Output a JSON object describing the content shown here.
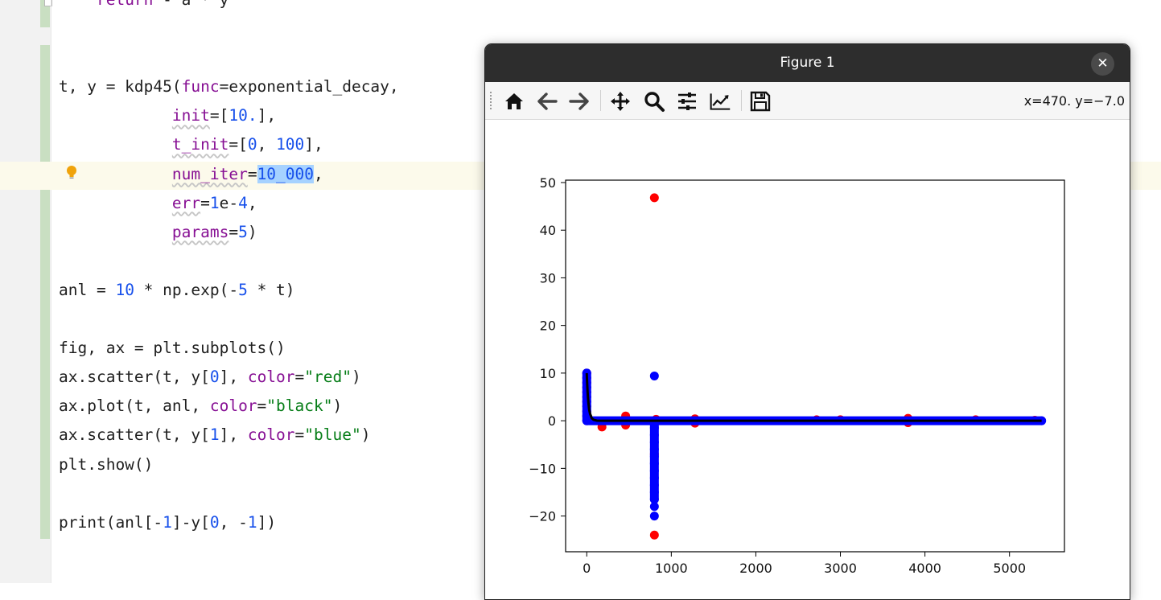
{
  "editor": {
    "lines": [
      {
        "id": "l0",
        "html": "    <span class=\"kw-param\">return</span> - a * y"
      },
      {
        "id": "l1",
        "html": ""
      },
      {
        "id": "l2",
        "html": ""
      },
      {
        "id": "l3",
        "html": "t, y = kdp45(<span class=\"kw-param\">func</span>=exponential_decay,"
      },
      {
        "id": "l4",
        "html": "            <span class=\"kw-param squig\">init</span>=[<span class=\"num\">10.</span>],"
      },
      {
        "id": "l5",
        "html": "            <span class=\"kw-param squig\">t_init</span>=[<span class=\"num\">0</span>, <span class=\"num\">100</span>],"
      },
      {
        "id": "l6",
        "html": "            <span class=\"kw-param squig\">num_iter</span>=<span class=\"num sel\">10_000</span>,"
      },
      {
        "id": "l7",
        "html": "            <span class=\"kw-param squig\">err</span>=<span class=\"num\">1</span>e-<span class=\"num\">4</span>,"
      },
      {
        "id": "l8",
        "html": "            <span class=\"kw-param squig\">params</span>=<span class=\"num\">5</span>)"
      },
      {
        "id": "l9",
        "html": ""
      },
      {
        "id": "l10",
        "html": "anl = <span class=\"num\">10</span> * np.exp(-<span class=\"num\">5</span> * t)"
      },
      {
        "id": "l11",
        "html": ""
      },
      {
        "id": "l12",
        "html": "fig, ax = plt.subplots()"
      },
      {
        "id": "l13",
        "html": "ax.scatter(t, y[<span class=\"num\">0</span>], <span class=\"kw-param\">color</span>=<span class=\"str\">\"red\"</span>)"
      },
      {
        "id": "l14",
        "html": "ax.plot(t, anl, <span class=\"kw-param\">color</span>=<span class=\"str\">\"black\"</span>)"
      },
      {
        "id": "l15",
        "html": "ax.scatter(t, y[<span class=\"num\">1</span>], <span class=\"kw-param\">color</span>=<span class=\"str\">\"blue\"</span>)"
      },
      {
        "id": "l16",
        "html": "plt.show()"
      },
      {
        "id": "l17",
        "html": ""
      },
      {
        "id": "l18",
        "html": "print(anl[-<span class=\"num\">1</span>]-y[<span class=\"num\">0</span>, -<span class=\"num\">1</span>])"
      }
    ],
    "colors": {
      "param": "#871094",
      "number": "#1750eb",
      "string": "#067d17",
      "selection": "#a6d2ff",
      "caret_row": "#fcfaeb",
      "change_marker": "#c9dfc2"
    },
    "icons": {
      "intention": "lightbulb-icon"
    }
  },
  "figure_window": {
    "title": "Figure 1",
    "close_label": "✕",
    "coord_readout": "x=470. y=−7.0",
    "toolbar": [
      {
        "name": "home-icon",
        "tooltip": "Reset original view"
      },
      {
        "name": "back-arrow-icon",
        "tooltip": "Back"
      },
      {
        "name": "forward-arrow-icon",
        "tooltip": "Forward"
      },
      {
        "name": "pan-move-icon",
        "tooltip": "Pan"
      },
      {
        "name": "zoom-magnifier-icon",
        "tooltip": "Zoom"
      },
      {
        "name": "subplots-config-icon",
        "tooltip": "Configure subplots"
      },
      {
        "name": "edit-axis-icon",
        "tooltip": "Edit axis"
      },
      {
        "name": "save-floppy-icon",
        "tooltip": "Save"
      }
    ]
  },
  "chart_data": {
    "type": "scatter",
    "title": "",
    "xlabel": "",
    "ylabel": "",
    "xlim": [
      -250,
      5650
    ],
    "ylim": [
      -27.5,
      50.5
    ],
    "xticks": [
      0,
      1000,
      2000,
      3000,
      4000,
      5000
    ],
    "yticks": [
      -20,
      -10,
      0,
      10,
      20,
      30,
      40,
      50
    ],
    "grid": false,
    "series": [
      {
        "kind": "scatter",
        "color": "#ff0000",
        "points": [
          [
            0,
            10
          ],
          [
            0,
            9
          ],
          [
            0,
            8
          ],
          [
            0,
            7
          ],
          [
            0,
            6
          ],
          [
            0,
            5
          ],
          [
            0,
            4
          ],
          [
            0,
            3
          ],
          [
            0,
            2
          ],
          [
            0,
            1
          ],
          [
            5,
            0
          ],
          [
            180,
            -1.3
          ],
          [
            460,
            1.0
          ],
          [
            460,
            -0.9
          ],
          [
            800,
            46.8
          ],
          [
            800,
            -24.0
          ],
          [
            800,
            -7.0
          ],
          [
            820,
            0.3
          ],
          [
            1280,
            0.4
          ],
          [
            1280,
            -0.5
          ],
          [
            2720,
            0.2
          ],
          [
            3000,
            0.2
          ],
          [
            3800,
            0.5
          ],
          [
            3800,
            -0.4
          ],
          [
            4600,
            0.2
          ],
          [
            5300,
            0.1
          ]
        ]
      },
      {
        "kind": "line",
        "color": "#000000",
        "points": [
          [
            0,
            10
          ],
          [
            2,
            9
          ],
          [
            5,
            7.8
          ],
          [
            10,
            6
          ],
          [
            15,
            4.7
          ],
          [
            20,
            3.7
          ],
          [
            30,
            2.2
          ],
          [
            40,
            1.4
          ],
          [
            60,
            0.5
          ],
          [
            80,
            0.2
          ],
          [
            120,
            0.02
          ],
          [
            200,
            0
          ],
          [
            5380,
            0
          ]
        ]
      },
      {
        "kind": "scatter",
        "color": "#0000ff",
        "points": [
          [
            0,
            10
          ],
          [
            0,
            9
          ],
          [
            0,
            8
          ],
          [
            0,
            7
          ],
          [
            0,
            6
          ],
          [
            0,
            5
          ],
          [
            0,
            4
          ],
          [
            0,
            3
          ],
          [
            0,
            2
          ],
          [
            0,
            1
          ],
          [
            0,
            0
          ],
          [
            800,
            9.4
          ],
          [
            800,
            -20.0
          ],
          [
            800,
            -18.0
          ],
          [
            800,
            -16.5
          ],
          [
            800,
            -15.0
          ],
          [
            800,
            -13.5
          ],
          [
            800,
            -12.0
          ],
          [
            800,
            -10.5
          ],
          [
            800,
            -9.0
          ],
          [
            800,
            -7.5
          ],
          [
            800,
            -6.0
          ],
          [
            800,
            -4.5
          ],
          [
            800,
            -3.0
          ],
          [
            800,
            -1.5
          ],
          [
            5380,
            0
          ]
        ]
      }
    ]
  }
}
